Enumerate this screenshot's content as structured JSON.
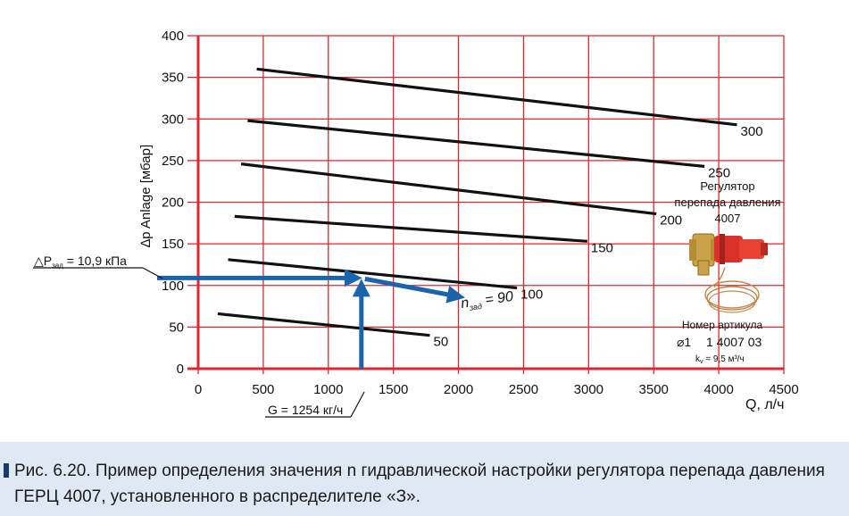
{
  "chart_data": {
    "type": "line",
    "xlabel": "Q, л/ч",
    "ylabel": "∆p Anlage  [мбар]",
    "xlim": [
      0,
      4500
    ],
    "ylim": [
      0,
      400
    ],
    "xticks": [
      0,
      500,
      1000,
      1500,
      2000,
      2500,
      3000,
      3500,
      4000,
      4500
    ],
    "yticks": [
      0,
      50,
      100,
      150,
      200,
      250,
      300,
      350,
      400
    ],
    "grid": true,
    "grid_color": "#e3262b",
    "line_color": "#111111",
    "arrow_color": "#1a64ae",
    "series": [
      {
        "name": "50",
        "x": [
          150,
          1780
        ],
        "y": [
          66,
          40
        ]
      },
      {
        "name": "100",
        "x": [
          230,
          2450
        ],
        "y": [
          131,
          97
        ]
      },
      {
        "name": "150",
        "x": [
          280,
          2990
        ],
        "y": [
          183,
          153
        ]
      },
      {
        "name": "200",
        "x": [
          330,
          3520
        ],
        "y": [
          246,
          186
        ]
      },
      {
        "name": "250",
        "x": [
          380,
          3890
        ],
        "y": [
          298,
          243
        ]
      },
      {
        "name": "300",
        "x": [
          450,
          4140
        ],
        "y": [
          360,
          293
        ]
      }
    ],
    "annotations": {
      "dp_label": "△Р",
      "dp_sub": "зад",
      "dp_value": " = 10,9 кПа",
      "dp_point": {
        "x": 1254,
        "y": 109
      },
      "g_label": "G = 1254 кг/ч",
      "n_label": "n",
      "n_sub": "зад",
      "n_value": " = 90",
      "n_arrow_end": {
        "x": 1990,
        "y": 87
      }
    }
  },
  "product": {
    "title_line1": "Регулятор",
    "title_line2": "перепада давления",
    "title_line3": "4007",
    "article_label": "Номер артикула",
    "diameter": "⌀1",
    "article_number": "1 4007 03",
    "kv_prefix": "k",
    "kv_sub": "v",
    "kv_value": " = 9,5 м³/ч"
  },
  "caption": {
    "line1": "Рис. 6.20. Пример определения значения n гидравлической настройки регулятора перепада давления",
    "line2": "ГЕРЦ 4007, установленного в распределителе «З»."
  }
}
